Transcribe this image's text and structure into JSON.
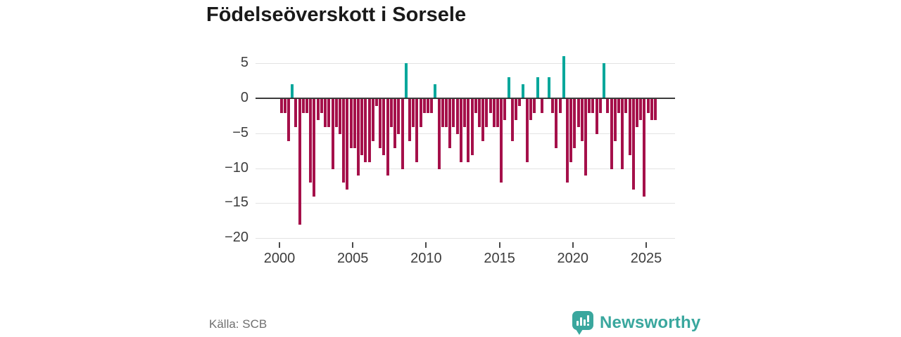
{
  "title": "Födelseöverskott i Sorsele",
  "source": "Källa: SCB",
  "branding": {
    "name": "Newsworthy",
    "icon": "newsworthy-speech-bubble-chart-icon"
  },
  "colors": {
    "positive_bar": "#00a79b",
    "negative_bar": "#a5104a",
    "zero_line": "#3b3b3b",
    "gridline": "#e3e3e3",
    "title_text": "#1a1a1a",
    "axis_text": "#3d3d3d",
    "source_text": "#6f6f6f",
    "brand_teal": "#3aa79e",
    "background": "#ffffff"
  },
  "chart_data": {
    "type": "bar",
    "title": "Födelseöverskott i Sorsele",
    "xlabel": "",
    "ylabel": "",
    "frequency": "quarterly",
    "unit": "persons per quarter",
    "ylim": [
      -20,
      6.5
    ],
    "yticks": [
      5,
      0,
      -5,
      -10,
      -15,
      -20
    ],
    "xticks": [
      2000,
      2005,
      2010,
      2015,
      2020,
      2025
    ],
    "grid": true,
    "legend": "none",
    "series_by_year": [
      {
        "year": 2000,
        "values": [
          -2,
          -2,
          -6,
          2
        ]
      },
      {
        "year": 2001,
        "values": [
          -4,
          -18,
          -2,
          -2
        ]
      },
      {
        "year": 2002,
        "values": [
          -12,
          -14,
          -3,
          -2
        ]
      },
      {
        "year": 2003,
        "values": [
          -4,
          -4,
          -10,
          -4
        ]
      },
      {
        "year": 2004,
        "values": [
          -5,
          -12,
          -13,
          -7
        ]
      },
      {
        "year": 2005,
        "values": [
          -7,
          -11,
          -8,
          -9
        ]
      },
      {
        "year": 2006,
        "values": [
          -9,
          -6,
          -1,
          -7
        ]
      },
      {
        "year": 2007,
        "values": [
          -8,
          -11,
          -4,
          -7
        ]
      },
      {
        "year": 2008,
        "values": [
          -5,
          -10,
          5,
          -6
        ]
      },
      {
        "year": 2009,
        "values": [
          -4,
          -9,
          -4,
          -2
        ]
      },
      {
        "year": 2010,
        "values": [
          -2,
          -2,
          2,
          -10
        ]
      },
      {
        "year": 2011,
        "values": [
          -4,
          -4,
          -7,
          -4
        ]
      },
      {
        "year": 2012,
        "values": [
          -5,
          -9,
          -4,
          -9
        ]
      },
      {
        "year": 2013,
        "values": [
          -8,
          -2,
          -4,
          -6
        ]
      },
      {
        "year": 2014,
        "values": [
          -4,
          -2,
          -4,
          -4
        ]
      },
      {
        "year": 2015,
        "values": [
          -12,
          -3,
          3,
          -6
        ]
      },
      {
        "year": 2016,
        "values": [
          -3,
          -1,
          2,
          -9
        ]
      },
      {
        "year": 2017,
        "values": [
          -3,
          -2,
          3,
          -2
        ]
      },
      {
        "year": 2018,
        "values": [
          0,
          3,
          -2,
          -7
        ]
      },
      {
        "year": 2019,
        "values": [
          -2,
          6,
          -12,
          -9
        ]
      },
      {
        "year": 2020,
        "values": [
          -7,
          -4,
          -6,
          -11
        ]
      },
      {
        "year": 2021,
        "values": [
          -2,
          -2,
          -5,
          -2
        ]
      },
      {
        "year": 2022,
        "values": [
          5,
          -2,
          -10,
          -6
        ]
      },
      {
        "year": 2023,
        "values": [
          -2,
          -10,
          -2,
          -8
        ]
      },
      {
        "year": 2024,
        "values": [
          -13,
          -4,
          -3,
          -14
        ]
      },
      {
        "year": 2025,
        "values": [
          -2,
          -3,
          -3
        ]
      }
    ]
  }
}
